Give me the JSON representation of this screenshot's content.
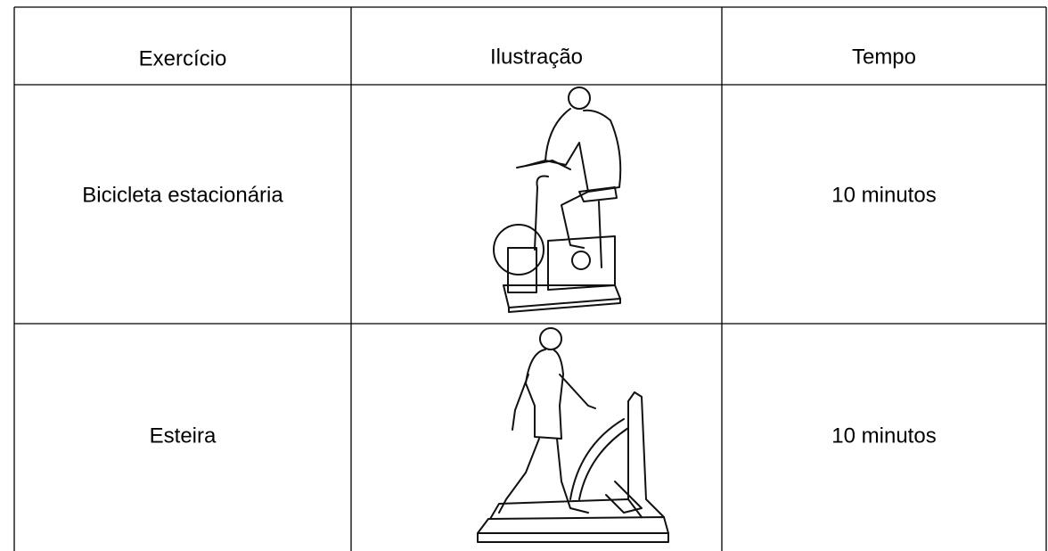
{
  "table": {
    "header": [
      "Exercício",
      "Ilustração",
      "Tempo"
    ],
    "rows": [
      [
        "Bicicleta estacionária",
        "10 minutos"
      ],
      [
        "Esteira",
        "10 minutos"
      ]
    ]
  }
}
